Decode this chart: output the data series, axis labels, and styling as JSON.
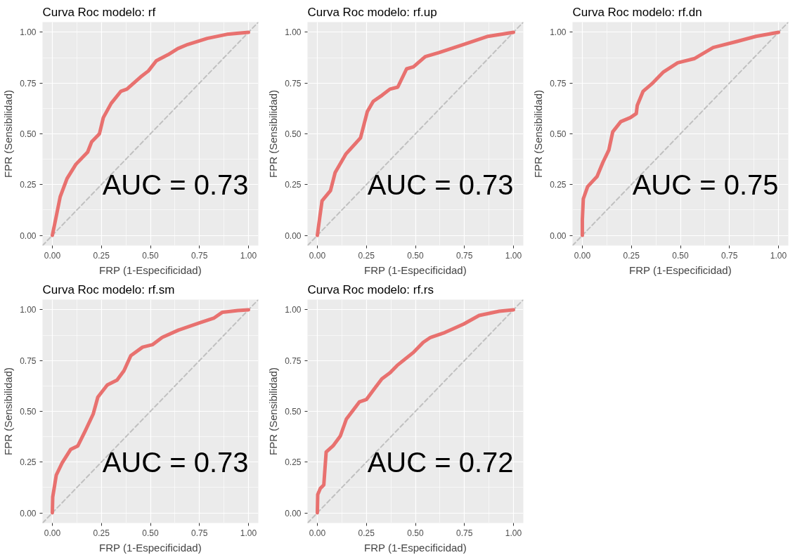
{
  "chart_data": [
    {
      "type": "line",
      "title": "Curva Roc modelo: rf",
      "xlabel": "FRP (1-Especificidad)",
      "ylabel": "FPR (Sensibilidad)",
      "annotations": [
        "AUC = 0.73"
      ],
      "grid": true,
      "line_style": "solid",
      "marker": "none",
      "xlim": [
        -0.05,
        1.05
      ],
      "ylim": [
        -0.05,
        1.05
      ],
      "xticks": [
        {
          "value": 0,
          "label": "0.00"
        },
        {
          "value": 0.25,
          "label": "0.25"
        },
        {
          "value": 0.5,
          "label": "0.50"
        },
        {
          "value": 0.75,
          "label": "0.75"
        },
        {
          "value": 1,
          "label": "1.00"
        }
      ],
      "yticks": [
        {
          "value": 0,
          "label": "0.00"
        },
        {
          "value": 0.25,
          "label": "0.25"
        },
        {
          "value": 0.5,
          "label": "0.50"
        },
        {
          "value": 0.75,
          "label": "0.75"
        },
        {
          "value": 1,
          "label": "1.00"
        }
      ],
      "series": [
        {
          "color": "#c0c0c0",
          "line_style": "dashed",
          "x": [
            -0.05,
            1.05
          ],
          "values": [
            -0.05,
            1.05
          ]
        },
        {
          "color": "#e8716f",
          "x": [
            0,
            0.015,
            0.04,
            0.075,
            0.12,
            0.18,
            0.2,
            0.24,
            0.26,
            0.3,
            0.35,
            0.38,
            0.45,
            0.49,
            0.53,
            0.59,
            0.64,
            0.69,
            0.79,
            0.89,
            1
          ],
          "values": [
            0,
            0.07,
            0.19,
            0.28,
            0.35,
            0.41,
            0.46,
            0.5,
            0.58,
            0.65,
            0.71,
            0.72,
            0.78,
            0.81,
            0.86,
            0.89,
            0.92,
            0.94,
            0.97,
            0.99,
            1
          ]
        }
      ]
    },
    {
      "type": "line",
      "title": "Curva Roc modelo: rf.up",
      "xlabel": "FRP (1-Especificidad)",
      "ylabel": "FPR (Sensibilidad)",
      "annotations": [
        "AUC = 0.73"
      ],
      "grid": true,
      "line_style": "solid",
      "marker": "none",
      "xlim": [
        -0.05,
        1.05
      ],
      "ylim": [
        -0.05,
        1.05
      ],
      "xticks": [
        {
          "value": 0,
          "label": "0.00"
        },
        {
          "value": 0.25,
          "label": "0.25"
        },
        {
          "value": 0.5,
          "label": "0.50"
        },
        {
          "value": 0.75,
          "label": "0.75"
        },
        {
          "value": 1,
          "label": "1.00"
        }
      ],
      "yticks": [
        {
          "value": 0,
          "label": "0.00"
        },
        {
          "value": 0.25,
          "label": "0.25"
        },
        {
          "value": 0.5,
          "label": "0.50"
        },
        {
          "value": 0.75,
          "label": "0.75"
        },
        {
          "value": 1,
          "label": "1.00"
        }
      ],
      "series": [
        {
          "color": "#c0c0c0",
          "line_style": "dashed",
          "x": [
            -0.05,
            1.05
          ],
          "values": [
            -0.05,
            1.05
          ]
        },
        {
          "color": "#e8716f",
          "x": [
            0,
            0.012,
            0.024,
            0.067,
            0.091,
            0.145,
            0.22,
            0.255,
            0.285,
            0.33,
            0.37,
            0.41,
            0.455,
            0.49,
            0.55,
            0.62,
            0.745,
            0.87,
            1
          ],
          "values": [
            0,
            0.086,
            0.17,
            0.22,
            0.31,
            0.4,
            0.48,
            0.61,
            0.66,
            0.69,
            0.72,
            0.73,
            0.82,
            0.83,
            0.88,
            0.9,
            0.94,
            0.98,
            1
          ]
        }
      ]
    },
    {
      "type": "line",
      "title": "Curva Roc modelo: rf.dn",
      "xlabel": "FRP (1-Especificidad)",
      "ylabel": "FPR (Sensibilidad)",
      "annotations": [
        "AUC = 0.75"
      ],
      "grid": true,
      "line_style": "solid",
      "marker": "none",
      "xlim": [
        -0.05,
        1.05
      ],
      "ylim": [
        -0.05,
        1.05
      ],
      "xticks": [
        {
          "value": 0,
          "label": "0.00"
        },
        {
          "value": 0.25,
          "label": "0.25"
        },
        {
          "value": 0.5,
          "label": "0.50"
        },
        {
          "value": 0.75,
          "label": "0.75"
        },
        {
          "value": 1,
          "label": "1.00"
        }
      ],
      "yticks": [
        {
          "value": 0,
          "label": "0.00"
        },
        {
          "value": 0.25,
          "label": "0.25"
        },
        {
          "value": 0.5,
          "label": "0.50"
        },
        {
          "value": 0.75,
          "label": "0.75"
        },
        {
          "value": 1,
          "label": "1.00"
        }
      ],
      "series": [
        {
          "color": "#c0c0c0",
          "line_style": "dashed",
          "x": [
            -0.05,
            1.05
          ],
          "values": [
            -0.05,
            1.05
          ]
        },
        {
          "color": "#e8716f",
          "x": [
            0,
            0,
            0.005,
            0.027,
            0.075,
            0.105,
            0.135,
            0.155,
            0.196,
            0.245,
            0.275,
            0.28,
            0.31,
            0.353,
            0.414,
            0.486,
            0.57,
            0.667,
            0.788,
            0.885,
            1
          ],
          "values": [
            0,
            0.075,
            0.18,
            0.24,
            0.29,
            0.36,
            0.42,
            0.51,
            0.56,
            0.58,
            0.6,
            0.64,
            0.71,
            0.745,
            0.805,
            0.85,
            0.87,
            0.925,
            0.955,
            0.98,
            1
          ]
        }
      ]
    },
    {
      "type": "line",
      "title": "Curva Roc modelo: rf.sm",
      "xlabel": "FRP (1-Especificidad)",
      "ylabel": "FPR (Sensibilidad)",
      "annotations": [
        "AUC = 0.73"
      ],
      "grid": true,
      "line_style": "solid",
      "marker": "none",
      "xlim": [
        -0.05,
        1.05
      ],
      "ylim": [
        -0.05,
        1.05
      ],
      "xticks": [
        {
          "value": 0,
          "label": "0.00"
        },
        {
          "value": 0.25,
          "label": "0.25"
        },
        {
          "value": 0.5,
          "label": "0.50"
        },
        {
          "value": 0.75,
          "label": "0.75"
        },
        {
          "value": 1,
          "label": "1.00"
        }
      ],
      "yticks": [
        {
          "value": 0,
          "label": "0.00"
        },
        {
          "value": 0.25,
          "label": "0.25"
        },
        {
          "value": 0.5,
          "label": "0.50"
        },
        {
          "value": 0.75,
          "label": "0.75"
        },
        {
          "value": 1,
          "label": "1.00"
        }
      ],
      "series": [
        {
          "color": "#c0c0c0",
          "line_style": "dashed",
          "x": [
            -0.05,
            1.05
          ],
          "values": [
            -0.05,
            1.05
          ]
        },
        {
          "color": "#e8716f",
          "x": [
            0,
            0.002,
            0.02,
            0.05,
            0.093,
            0.13,
            0.166,
            0.208,
            0.232,
            0.28,
            0.33,
            0.365,
            0.4,
            0.46,
            0.51,
            0.56,
            0.643,
            0.752,
            0.825,
            0.867,
            0.946,
            1
          ],
          "values": [
            0,
            0.078,
            0.186,
            0.246,
            0.312,
            0.33,
            0.4,
            0.486,
            0.57,
            0.63,
            0.654,
            0.7,
            0.774,
            0.816,
            0.828,
            0.864,
            0.9,
            0.936,
            0.96,
            0.988,
            0.996,
            1
          ]
        }
      ]
    },
    {
      "type": "line",
      "title": "Curva Roc modelo: rf.rs",
      "xlabel": "FRP (1-Especificidad)",
      "ylabel": "FPR (Sensibilidad)",
      "annotations": [
        "AUC = 0.72"
      ],
      "grid": true,
      "line_style": "solid",
      "marker": "none",
      "xlim": [
        -0.05,
        1.05
      ],
      "ylim": [
        -0.05,
        1.05
      ],
      "xticks": [
        {
          "value": 0,
          "label": "0.00"
        },
        {
          "value": 0.25,
          "label": "0.25"
        },
        {
          "value": 0.5,
          "label": "0.50"
        },
        {
          "value": 0.75,
          "label": "0.75"
        },
        {
          "value": 1,
          "label": "1.00"
        }
      ],
      "yticks": [
        {
          "value": 0,
          "label": "0.00"
        },
        {
          "value": 0.25,
          "label": "0.25"
        },
        {
          "value": 0.5,
          "label": "0.50"
        },
        {
          "value": 0.75,
          "label": "0.75"
        },
        {
          "value": 1,
          "label": "1.00"
        }
      ],
      "series": [
        {
          "color": "#c0c0c0",
          "line_style": "dashed",
          "x": [
            -0.05,
            1.05
          ],
          "values": [
            -0.05,
            1.05
          ]
        },
        {
          "color": "#e8716f",
          "x": [
            0,
            0.002,
            0.015,
            0.033,
            0.045,
            0.08,
            0.117,
            0.148,
            0.214,
            0.25,
            0.287,
            0.329,
            0.371,
            0.407,
            0.492,
            0.54,
            0.577,
            0.65,
            0.746,
            0.825,
            0.927,
            1
          ],
          "values": [
            0,
            0.09,
            0.12,
            0.138,
            0.3,
            0.33,
            0.378,
            0.462,
            0.546,
            0.558,
            0.606,
            0.66,
            0.69,
            0.726,
            0.792,
            0.84,
            0.864,
            0.888,
            0.93,
            0.972,
            0.993,
            1
          ]
        }
      ]
    }
  ]
}
